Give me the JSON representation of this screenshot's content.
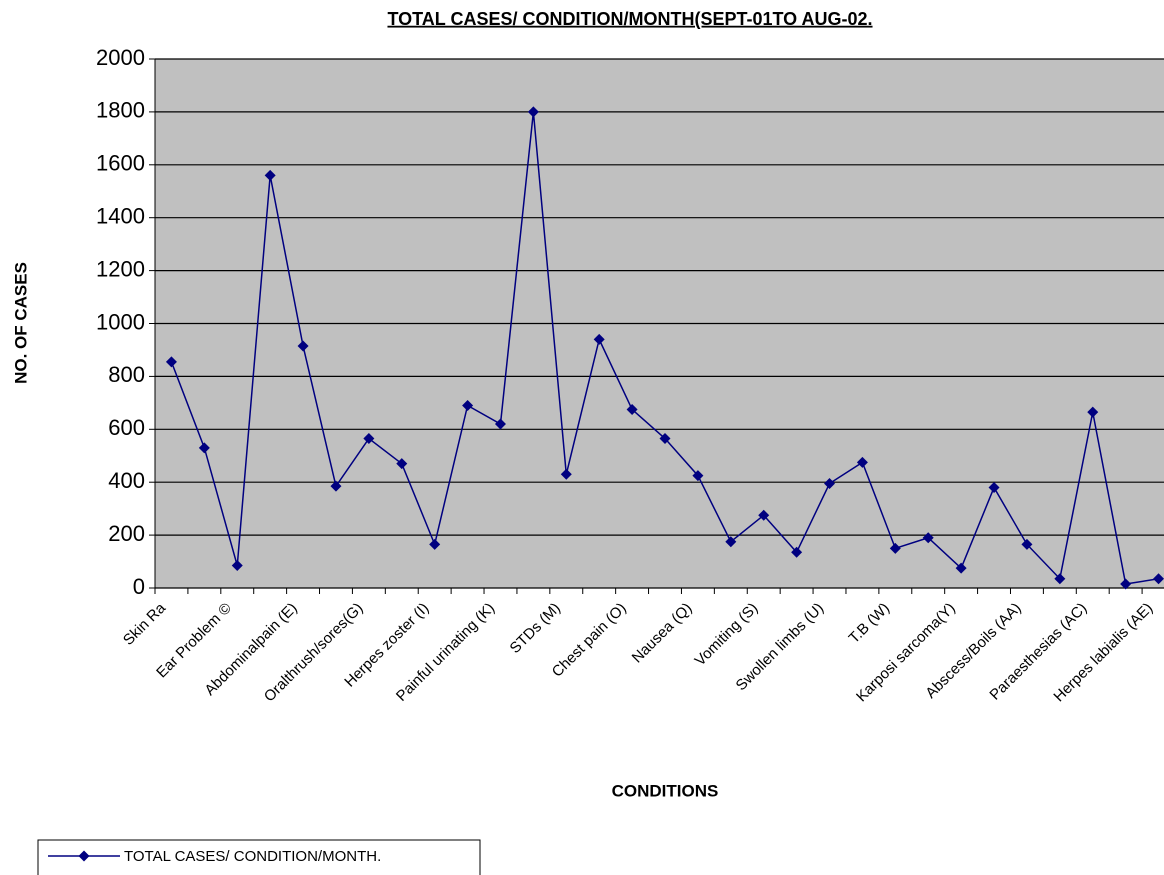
{
  "chart_data": {
    "type": "line",
    "title": "TOTAL CASES/ CONDITION/MONTH(SEPT-01TO AUG-02.",
    "x_label": "CONDITIONS",
    "y_label": "NO. OF CASES",
    "categories": [
      "Skin Ra",
      null,
      "Ear Problem ©",
      null,
      "Abdominalpain (E)",
      null,
      "Oralthrush/sores(G)",
      null,
      "Herpes zoster (I)",
      null,
      "Painful urinating (K)",
      null,
      "STDs (M)",
      null,
      "Chest pain (O)",
      null,
      "Nausea (Q)",
      null,
      "Vomiting (S)",
      null,
      "Swollen limbs (U)",
      null,
      "T.B (W)",
      null,
      "Karposi sarcoma(Y)",
      null,
      "Abscess/Boils (AA)",
      null,
      "Paraesthesias (AC)",
      null,
      "Herpes labialis (AE)"
    ],
    "series": [
      {
        "name": "TOTAL CASES/ CONDITION/MONTH.",
        "color": "#000080",
        "values": [
          855,
          530,
          85,
          1560,
          915,
          385,
          565,
          470,
          165,
          690,
          620,
          1800,
          430,
          940,
          675,
          565,
          425,
          175,
          275,
          135,
          395,
          475,
          150,
          190,
          75,
          380,
          165,
          35,
          665,
          15,
          35
        ]
      }
    ],
    "ylim": [
      0,
      2000
    ],
    "yticks": [
      0,
      200,
      400,
      600,
      800,
      1000,
      1200,
      1400,
      1600,
      1800,
      2000
    ],
    "grid": true,
    "plot_background": "#c0c0c0",
    "legend": "bottom-left"
  }
}
